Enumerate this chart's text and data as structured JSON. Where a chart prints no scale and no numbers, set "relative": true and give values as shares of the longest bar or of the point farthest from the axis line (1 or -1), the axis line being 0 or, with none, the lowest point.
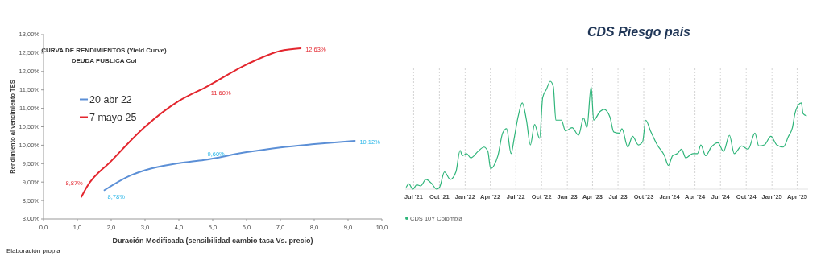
{
  "chart_data": [
    {
      "type": "line",
      "title": "CURVA DE RENDIMIENTOS (Yield Curve)",
      "subtitle": "DEUDA PUBLICA Col",
      "xlabel": "Duración Modificada (sensibilidad cambio tasa Vs. precio)",
      "ylabel": "Rendimiento al vencimiento TES",
      "annotations": [
        "Elaboración propia"
      ],
      "series": [
        {
          "name": "20 abr 22",
          "color": "#5b8fd6",
          "x": [
            1.8,
            2.5,
            3,
            4,
            4.75,
            6,
            7,
            8,
            9.2
          ],
          "values": [
            8.78,
            9.15,
            9.32,
            9.51,
            9.6,
            9.81,
            9.94,
            10.03,
            10.12
          ],
          "value_labels": [
            "8,78%",
            null,
            null,
            null,
            "9,60%",
            null,
            null,
            null,
            "10,12%"
          ]
        },
        {
          "name": "7 mayo 25",
          "color": "#e3262e",
          "x": [
            1.12,
            1.28,
            2,
            3,
            4,
            4.85,
            6,
            7,
            7.6
          ],
          "values": [
            8.6,
            8.87,
            9.57,
            10.5,
            11.2,
            11.6,
            12.19,
            12.56,
            12.63
          ],
          "value_labels": [
            null,
            "8,87%",
            null,
            null,
            null,
            "11,60%",
            null,
            null,
            "12,63%"
          ]
        }
      ],
      "xlim": [
        0,
        10
      ],
      "xticks": [
        {
          "value": 0,
          "label": "0,0"
        },
        {
          "value": 1,
          "label": "1,0"
        },
        {
          "value": 2,
          "label": "2,0"
        },
        {
          "value": 3,
          "label": "3,0"
        },
        {
          "value": 4,
          "label": "4,0"
        },
        {
          "value": 5,
          "label": "5,0"
        },
        {
          "value": 6,
          "label": "6,0"
        },
        {
          "value": 7,
          "label": "7,0"
        },
        {
          "value": 8,
          "label": "8,0"
        },
        {
          "value": 9,
          "label": "9,0"
        },
        {
          "value": 10,
          "label": "10,0"
        }
      ],
      "ylim": [
        8,
        13
      ],
      "yticks": [
        {
          "value": 8,
          "label": "8,00%"
        },
        {
          "value": 8.5,
          "label": "8,50%"
        },
        {
          "value": 9,
          "label": "9,00%"
        },
        {
          "value": 9.5,
          "label": "9,50%"
        },
        {
          "value": 10,
          "label": "10,00%"
        },
        {
          "value": 10.5,
          "label": "10,50%"
        },
        {
          "value": 11,
          "label": "11,00%"
        },
        {
          "value": 11.5,
          "label": "11,50%"
        },
        {
          "value": 12,
          "label": "12,00%"
        },
        {
          "value": 12.5,
          "label": "12,50%"
        },
        {
          "value": 13,
          "label": "13,00%"
        }
      ],
      "legend": "left"
    },
    {
      "type": "line",
      "title": "CDS Riesgo país",
      "relative": true,
      "grid": "x",
      "legend": "bottom left",
      "x": [
        "2021-06-05",
        "2021-06-14",
        "2021-06-28",
        "2021-07-12",
        "2021-07-26",
        "2021-08-14",
        "2021-09-04",
        "2021-09-21",
        "2021-10-02",
        "2021-10-19",
        "2021-11-09",
        "2021-11-29",
        "2021-12-14",
        "2021-12-22",
        "2022-01-06",
        "2022-01-21",
        "2022-02-16",
        "2022-03-09",
        "2022-03-23",
        "2022-04-02",
        "2022-04-14",
        "2022-04-28",
        "2022-05-15",
        "2022-05-29",
        "2022-06-14",
        "2022-06-25",
        "2022-07-09",
        "2022-07-24",
        "2022-08-08",
        "2022-08-22",
        "2022-09-06",
        "2022-09-24",
        "2022-10-05",
        "2022-10-19",
        "2022-11-01",
        "2022-11-12",
        "2022-11-21",
        "2022-12-11",
        "2022-12-25",
        "2023-01-18",
        "2023-02-10",
        "2023-02-28",
        "2023-03-12",
        "2023-03-27",
        "2023-04-05",
        "2023-04-28",
        "2023-05-12",
        "2023-06-02",
        "2023-06-16",
        "2023-07-06",
        "2023-07-15",
        "2023-08-05",
        "2023-08-22",
        "2023-09-12",
        "2023-09-27",
        "2023-10-08",
        "2023-10-25",
        "2023-11-18",
        "2023-12-14",
        "2023-12-28",
        "2024-01-12",
        "2024-01-29",
        "2024-02-13",
        "2024-02-28",
        "2024-03-24",
        "2024-04-10",
        "2024-04-22",
        "2024-05-09",
        "2024-05-29",
        "2024-06-22",
        "2024-07-12",
        "2024-08-02",
        "2024-08-19",
        "2024-09-15",
        "2024-10-08",
        "2024-11-01",
        "2024-11-15",
        "2024-12-05",
        "2024-12-28",
        "2025-01-18",
        "2025-02-10",
        "2025-03-01",
        "2025-03-15",
        "2025-03-24",
        "2025-04-05",
        "2025-04-16",
        "2025-04-22",
        "2025-05-04"
      ],
      "series": [
        {
          "name": "CDS 10Y Colombia",
          "color": "#2fb57a",
          "values": [
            0.02,
            0.05,
            0,
            0.04,
            0.03,
            0.09,
            0.05,
            0,
            0.02,
            0.16,
            0.09,
            0.16,
            0.36,
            0.31,
            0.33,
            0.29,
            0.35,
            0.39,
            0.35,
            0.19,
            0.22,
            0.31,
            0.52,
            0.56,
            0.33,
            0.47,
            0.67,
            0.8,
            0.64,
            0.41,
            0.6,
            0.47,
            0.85,
            0.93,
            1,
            0.95,
            0.64,
            0.64,
            0.54,
            0.57,
            0.5,
            0.66,
            0.57,
            0.95,
            0.64,
            0.72,
            0.74,
            0.67,
            0.53,
            0.52,
            0.56,
            0.39,
            0.49,
            0.41,
            0.44,
            0.64,
            0.54,
            0.41,
            0.31,
            0.22,
            0.31,
            0.33,
            0.37,
            0.29,
            0.33,
            0.33,
            0.41,
            0.31,
            0.39,
            0.43,
            0.35,
            0.5,
            0.33,
            0.4,
            0.37,
            0.52,
            0.4,
            0.41,
            0.49,
            0.41,
            0.39,
            0.49,
            0.57,
            0.7,
            0.78,
            0.8,
            0.7,
            0.68
          ]
        }
      ],
      "xlim": [
        "2021-06-01",
        "2025-05-10"
      ],
      "xticks": [
        {
          "value": "2021-07-01",
          "label": "Jul '21"
        },
        {
          "value": "2021-10-01",
          "label": "Oct '21"
        },
        {
          "value": "2022-01-01",
          "label": "Jan '22"
        },
        {
          "value": "2022-04-01",
          "label": "Apr '22"
        },
        {
          "value": "2022-07-01",
          "label": "Jul '22"
        },
        {
          "value": "2022-10-01",
          "label": "Oct '22"
        },
        {
          "value": "2023-01-01",
          "label": "Jan '23"
        },
        {
          "value": "2023-04-01",
          "label": "Apr '23"
        },
        {
          "value": "2023-07-01",
          "label": "Jul '23"
        },
        {
          "value": "2023-10-01",
          "label": "Oct '23"
        },
        {
          "value": "2024-01-01",
          "label": "Jan '24"
        },
        {
          "value": "2024-04-01",
          "label": "Apr '24"
        },
        {
          "value": "2024-07-01",
          "label": "Jul '24"
        },
        {
          "value": "2024-10-01",
          "label": "Oct '24"
        },
        {
          "value": "2025-01-01",
          "label": "Jan '25"
        },
        {
          "value": "2025-04-01",
          "label": "Apr '25"
        }
      ]
    }
  ]
}
